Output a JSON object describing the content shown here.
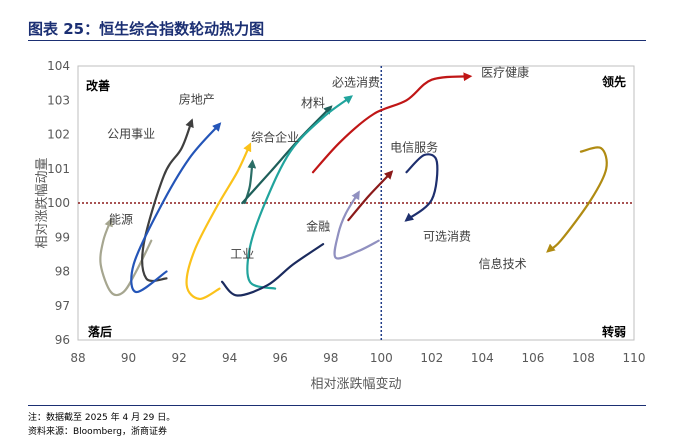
{
  "header": {
    "title": "图表 25：恒生综合指数轮动热力图"
  },
  "footer": {
    "note": "注：数据截至 2025 年 4 月 29 日。",
    "source": "资料来源：Bloomberg，浙商证券"
  },
  "chart_data": {
    "type": "line",
    "title": "",
    "xlabel": "相对涨跌幅变动",
    "ylabel": "相对涨跌幅动量",
    "xlim": [
      88,
      110
    ],
    "ylim": [
      96,
      104
    ],
    "xticks": [
      88,
      90,
      92,
      94,
      96,
      98,
      100,
      102,
      104,
      106,
      108,
      110
    ],
    "yticks": [
      96,
      97,
      98,
      99,
      100,
      101,
      102,
      103,
      104
    ],
    "reference_lines": {
      "x": 100,
      "y": 100,
      "x_color": "#1f3c88",
      "y_color": "#8b1a1a"
    },
    "quadrants": {
      "top_left": "改善",
      "top_right": "领先",
      "bottom_left": "落后",
      "bottom_right": "转弱"
    },
    "series": [
      {
        "name": "能源",
        "color": "#a6a690",
        "label_at": [
          89.7,
          99.4
        ],
        "arrow_end": [
          89.3,
          99.5
        ],
        "points": [
          [
            90.9,
            98.9
          ],
          [
            90.3,
            98.0
          ],
          [
            89.8,
            97.4
          ],
          [
            89.3,
            97.4
          ],
          [
            88.9,
            98.2
          ],
          [
            89.0,
            98.9
          ],
          [
            89.3,
            99.5
          ]
        ]
      },
      {
        "name": "公用事业",
        "color": "#3f3f3f",
        "label_at": [
          90.1,
          101.9
        ],
        "arrow_end": [
          92.5,
          102.4
        ],
        "points": [
          [
            91.5,
            97.8
          ],
          [
            90.7,
            97.8
          ],
          [
            90.6,
            98.8
          ],
          [
            91.4,
            100.8
          ],
          [
            92.1,
            101.6
          ],
          [
            92.5,
            102.4
          ]
        ]
      },
      {
        "name": "房地产",
        "color": "#2455b8",
        "label_at": [
          92.7,
          102.9
        ],
        "arrow_end": [
          93.6,
          102.3
        ],
        "points": [
          [
            91.5,
            98.0
          ],
          [
            90.3,
            97.4
          ],
          [
            90.2,
            98.2
          ],
          [
            91.2,
            99.8
          ],
          [
            92.4,
            101.3
          ],
          [
            93.6,
            102.3
          ]
        ]
      },
      {
        "name": "工业",
        "color": "#fbc21a",
        "label_at": [
          94.5,
          98.4
        ],
        "arrow_end": [
          94.8,
          101.7
        ],
        "points": [
          [
            93.6,
            97.5
          ],
          [
            92.8,
            97.2
          ],
          [
            92.3,
            97.6
          ],
          [
            92.6,
            98.6
          ],
          [
            93.5,
            99.9
          ],
          [
            94.3,
            100.9
          ],
          [
            94.8,
            101.7
          ]
        ]
      },
      {
        "name": "综合企业",
        "color": "#2b6e66",
        "label_at": [
          95.8,
          101.8
        ],
        "arrow_end": [
          94.9,
          101.2
        ],
        "points": [
          [
            94.6,
            100.0
          ],
          [
            94.8,
            100.5
          ],
          [
            94.9,
            101.2
          ]
        ]
      },
      {
        "name": "材料",
        "color": "#1e5f5a",
        "label_at": [
          97.3,
          102.8
        ],
        "arrow_end": [
          98.0,
          102.8
        ],
        "points": [
          [
            94.5,
            100.0
          ],
          [
            95.6,
            100.9
          ],
          [
            96.8,
            101.9
          ],
          [
            98.0,
            102.8
          ]
        ]
      },
      {
        "name": "必选消费",
        "color": "#21a49d",
        "label_at": [
          99.0,
          103.4
        ],
        "arrow_end": [
          98.8,
          103.1
        ],
        "points": [
          [
            95.8,
            97.5
          ],
          [
            94.8,
            97.7
          ],
          [
            94.8,
            98.7
          ],
          [
            95.4,
            100.0
          ],
          [
            96.4,
            101.5
          ],
          [
            97.7,
            102.5
          ],
          [
            98.8,
            103.1
          ]
        ]
      },
      {
        "name": "医疗健康",
        "color": "#c01616",
        "label_at": [
          104.9,
          103.7
        ],
        "arrow_end": [
          103.5,
          103.7
        ],
        "points": [
          [
            97.3,
            100.9
          ],
          [
            98.4,
            101.8
          ],
          [
            99.7,
            102.6
          ],
          [
            101.0,
            103.0
          ],
          [
            102.0,
            103.6
          ],
          [
            103.5,
            103.7
          ]
        ]
      },
      {
        "name": "电信服务",
        "color": "#8b1a1a",
        "label_at": [
          101.3,
          101.5
        ],
        "arrow_end": [
          100.4,
          100.9
        ],
        "points": [
          [
            98.7,
            99.5
          ],
          [
            99.5,
            100.2
          ],
          [
            100.4,
            100.9
          ]
        ]
      },
      {
        "name": "金融",
        "color": "#9090c0",
        "label_at": [
          97.5,
          99.2
        ],
        "arrow_end": [
          99.1,
          100.3
        ],
        "points": [
          [
            99.9,
            98.9
          ],
          [
            99.1,
            98.6
          ],
          [
            98.2,
            98.4
          ],
          [
            98.3,
            99.1
          ],
          [
            98.6,
            99.7
          ],
          [
            99.1,
            100.3
          ]
        ]
      },
      {
        "name": "可选消费",
        "color": "#1e2f6e",
        "label_at": [
          102.6,
          98.9
        ],
        "arrow_end": [
          101.0,
          99.5
        ],
        "points": [
          [
            101.0,
            100.9
          ],
          [
            101.7,
            101.4
          ],
          [
            102.2,
            101.2
          ],
          [
            102.0,
            100.1
          ],
          [
            101.0,
            99.5
          ]
        ]
      },
      {
        "name": "信息技术",
        "color": "#b08b12",
        "label_at": [
          104.8,
          98.1
        ],
        "arrow_end": [
          106.6,
          98.6
        ],
        "points": [
          [
            107.9,
            101.5
          ],
          [
            108.7,
            101.6
          ],
          [
            108.9,
            101.0
          ],
          [
            108.3,
            100.1
          ],
          [
            107.1,
            98.9
          ],
          [
            106.6,
            98.6
          ]
        ]
      },
      {
        "name": "",
        "color": "#1b2b5e",
        "label_at": null,
        "arrow_end": null,
        "points": [
          [
            97.7,
            98.8
          ],
          [
            96.5,
            98.2
          ],
          [
            95.5,
            97.6
          ],
          [
            94.3,
            97.3
          ],
          [
            93.7,
            97.7
          ]
        ]
      }
    ]
  }
}
